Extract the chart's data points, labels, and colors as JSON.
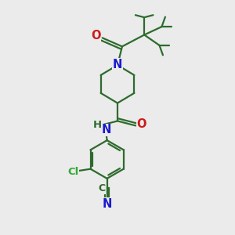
{
  "bg_color": "#ebebeb",
  "bond_color": "#2d6b2d",
  "N_color": "#1a1acc",
  "O_color": "#cc1a1a",
  "Cl_color": "#33aa33",
  "lw": 1.6,
  "fs": 9.5,
  "xlim": [
    0,
    10
  ],
  "ylim": [
    0,
    10
  ]
}
